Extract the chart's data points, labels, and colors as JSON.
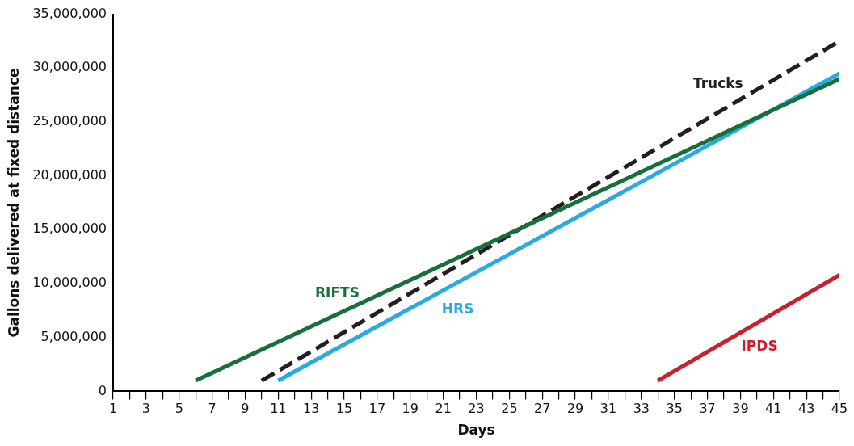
{
  "chart_data": {
    "type": "line",
    "xlabel": "Days",
    "ylabel": "Gallons delivered at fixed distance",
    "xlim": [
      1,
      45
    ],
    "xticks": [
      1,
      {
        "value": 2,
        "label": null
      },
      3,
      {
        "value": 4,
        "label": null
      },
      5,
      {
        "value": 6,
        "label": null
      },
      7,
      {
        "value": 8,
        "label": null
      },
      9,
      {
        "value": 10,
        "label": null
      },
      11,
      {
        "value": 12,
        "label": null
      },
      13,
      {
        "value": 14,
        "label": null
      },
      15,
      {
        "value": 16,
        "label": null
      },
      17,
      {
        "value": 18,
        "label": null
      },
      19,
      {
        "value": 20,
        "label": null
      },
      21,
      {
        "value": 22,
        "label": null
      },
      23,
      {
        "value": 24,
        "label": null
      },
      25,
      {
        "value": 26,
        "label": null
      },
      27,
      {
        "value": 28,
        "label": null
      },
      29,
      {
        "value": 30,
        "label": null
      },
      31,
      {
        "value": 32,
        "label": null
      },
      33,
      {
        "value": 34,
        "label": null
      },
      35,
      {
        "value": 36,
        "label": null
      },
      37,
      {
        "value": 38,
        "label": null
      },
      39,
      {
        "value": 40,
        "label": null
      },
      41,
      {
        "value": 42,
        "label": null
      },
      43,
      {
        "value": 44,
        "label": null
      },
      45
    ],
    "ylim": [
      0,
      35000000
    ],
    "yticks": [
      0,
      {
        "value": 5000000,
        "label": "5,000,000"
      },
      {
        "value": 10000000,
        "label": "10,000,000"
      },
      {
        "value": 15000000,
        "label": "15,000,000"
      },
      {
        "value": 20000000,
        "label": "20,000,000"
      },
      {
        "value": 25000000,
        "label": "25,000,000"
      },
      {
        "value": 30000000,
        "label": "30,000,000"
      },
      {
        "value": 35000000,
        "label": "35,000,000"
      }
    ],
    "grid": false,
    "legend": false,
    "marker": "none",
    "series": [
      {
        "name": "RIFTS",
        "color": "#17703c",
        "x": [
          6,
          45
        ],
        "values": [
          1000000,
          29000000
        ],
        "line_style": "solid"
      },
      {
        "name": "Trucks",
        "color": "#231f20",
        "x": [
          10,
          45
        ],
        "values": [
          1000000,
          32500000
        ],
        "line_style": "dashed"
      },
      {
        "name": "HRS",
        "color": "#29abe2",
        "x": [
          11,
          45
        ],
        "values": [
          1000000,
          29500000
        ],
        "line_style": "solid"
      },
      {
        "name": "IPDS",
        "color": "#c8202f",
        "x": [
          34,
          45
        ],
        "values": [
          1000000,
          10800000
        ],
        "line_style": "solid"
      }
    ]
  }
}
